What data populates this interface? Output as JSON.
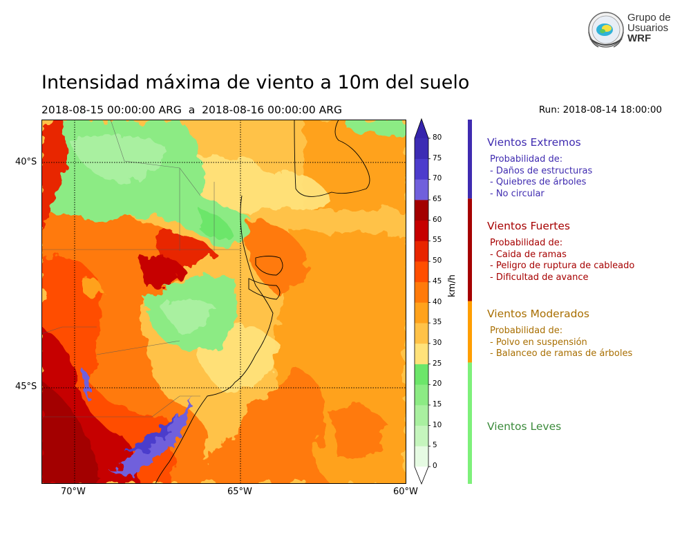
{
  "title": "Intensidad máxima de viento a 10m del suelo",
  "period": "2018-08-15 00:00:00 ARG  a  2018-08-16 00:00:00 ARG",
  "run": "Run: 2018-08-14 18:00:00",
  "logo": {
    "line1": "Grupo de",
    "line2": "Usuarios",
    "line3": "WRF"
  },
  "map": {
    "lon_ticks": [
      "70°W",
      "65°W",
      "60°W"
    ],
    "lat_ticks": [
      "40°S",
      "45°S"
    ],
    "lon_range": [
      -71,
      -60
    ],
    "lat_range": [
      -38.9,
      -47.0
    ]
  },
  "colorbar": {
    "unit": "km/h",
    "levels": [
      0,
      5,
      10,
      15,
      20,
      25,
      30,
      35,
      40,
      45,
      50,
      55,
      60,
      65,
      70,
      75,
      80
    ],
    "tick_labels": [
      "0",
      "5",
      "10",
      "15",
      "20",
      "25",
      "30",
      "35",
      "40",
      "45",
      "50",
      "55",
      "60",
      "65",
      "70",
      "75",
      "80"
    ],
    "colors": [
      "#e6fbe3",
      "#c5f5bd",
      "#a9f0a0",
      "#8ceb84",
      "#6ce66a",
      "#ffe27a",
      "#ffc248",
      "#ffa21c",
      "#ff7a0a",
      "#ff4e00",
      "#e82500",
      "#c60000",
      "#a30000",
      "#7060dc",
      "#4c3ccc",
      "#3c2cb4"
    ],
    "under_color": "#ffffff",
    "over_color": "#3524ac"
  },
  "categories": [
    {
      "name": "Vientos Extremos",
      "color": "#3f2bb0",
      "lines": [
        "Probabilidad de:",
        "- Daños de estructuras",
        "- Quiebres de árboles",
        "- No circular"
      ]
    },
    {
      "name": "Vientos Fuertes",
      "color": "#a60000",
      "lines": [
        "Probabilidad de:",
        "- Caida de ramas",
        "- Peligro de ruptura de cableado",
        "- Dificultad de avance"
      ]
    },
    {
      "name": "Vientos Moderados",
      "color": "#a86e00",
      "lines": [
        "Probabilidad de:",
        "- Polvo en suspensión",
        "- Balanceo de ramas de árboles"
      ]
    },
    {
      "name": "Vientos Leves",
      "color": "#3a8a3a",
      "lines": []
    }
  ],
  "category_bar_colors": [
    "#3f2bb0",
    "#a60000",
    "#ff9e00",
    "#7ef07a"
  ]
}
